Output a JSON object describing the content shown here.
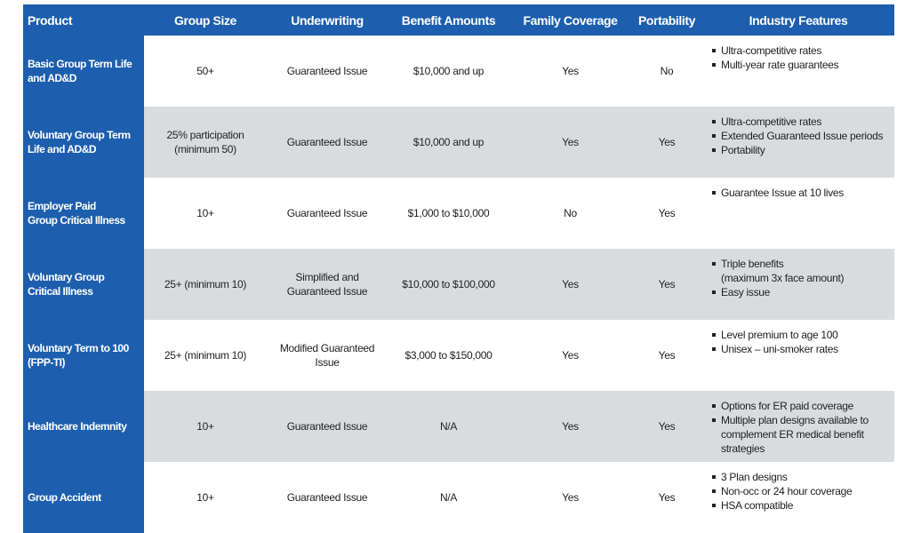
{
  "table": {
    "headers": [
      "Product",
      "Group Size",
      "Underwriting",
      "Benefit Amounts",
      "Family Coverage",
      "Portability",
      "Industry Features"
    ],
    "rows": [
      {
        "product": [
          "Basic Group Term Life",
          "and AD&D"
        ],
        "group_size": [
          "50+"
        ],
        "underwriting": [
          "Guaranteed Issue"
        ],
        "benefit_amounts": [
          "$10,000 and up"
        ],
        "family_coverage": [
          "Yes"
        ],
        "portability": [
          "No"
        ],
        "features": [
          [
            "Ultra-competitive rates"
          ],
          [
            "Multi-year rate guarantees"
          ]
        ]
      },
      {
        "product": [
          "Voluntary Group Term",
          "Life and AD&D"
        ],
        "group_size": [
          "25% participation",
          "(minimum 50)"
        ],
        "underwriting": [
          "Guaranteed Issue"
        ],
        "benefit_amounts": [
          "$10,000 and up"
        ],
        "family_coverage": [
          "Yes"
        ],
        "portability": [
          "Yes"
        ],
        "features": [
          [
            "Ultra-competitive rates"
          ],
          [
            "Extended Guaranteed Issue periods"
          ],
          [
            "Portability"
          ]
        ]
      },
      {
        "product": [
          "Employer Paid",
          "Group Critical Illness"
        ],
        "group_size": [
          "10+"
        ],
        "underwriting": [
          "Guaranteed Issue"
        ],
        "benefit_amounts": [
          "$1,000 to $10,000"
        ],
        "family_coverage": [
          "No"
        ],
        "portability": [
          "Yes"
        ],
        "features": [
          [
            "Guarantee Issue at 10 lives"
          ]
        ]
      },
      {
        "product": [
          "Voluntary Group",
          "Critical Illness"
        ],
        "group_size": [
          "25+ (minimum 10)"
        ],
        "underwriting": [
          "Simplified and",
          "Guaranteed  Issue"
        ],
        "benefit_amounts": [
          "$10,000 to $100,000"
        ],
        "family_coverage": [
          "Yes"
        ],
        "portability": [
          "Yes"
        ],
        "features": [
          [
            "Triple benefits",
            "(maximum 3x face amount)"
          ],
          [
            "Easy issue"
          ]
        ]
      },
      {
        "product": [
          "Voluntary Term to 100",
          "(FPP-TI)"
        ],
        "group_size": [
          "25+ (minimum 10)"
        ],
        "underwriting": [
          "Modified Guaranteed",
          "Issue"
        ],
        "benefit_amounts": [
          "$3,000 to $150,000"
        ],
        "family_coverage": [
          "Yes"
        ],
        "portability": [
          "Yes"
        ],
        "features": [
          [
            "Level premium to age 100"
          ],
          [
            "Unisex – uni-smoker rates"
          ]
        ]
      },
      {
        "product": [
          "Healthcare Indemnity"
        ],
        "group_size": [
          "10+"
        ],
        "underwriting": [
          "Guaranteed Issue"
        ],
        "benefit_amounts": [
          "N/A"
        ],
        "family_coverage": [
          "Yes"
        ],
        "portability": [
          "Yes"
        ],
        "features": [
          [
            "Options for ER paid coverage"
          ],
          [
            "Multiple plan designs available to",
            "complement ER medical benefit",
            "strategies"
          ]
        ]
      },
      {
        "product": [
          "Group Accident"
        ],
        "group_size": [
          "10+"
        ],
        "underwriting": [
          "Guaranteed Issue"
        ],
        "benefit_amounts": [
          "N/A"
        ],
        "family_coverage": [
          "Yes"
        ],
        "portability": [
          "Yes"
        ],
        "features": [
          [
            "3 Plan designs"
          ],
          [
            "Non-occ or 24 hour coverage"
          ],
          [
            "HSA compatible"
          ]
        ]
      }
    ]
  }
}
